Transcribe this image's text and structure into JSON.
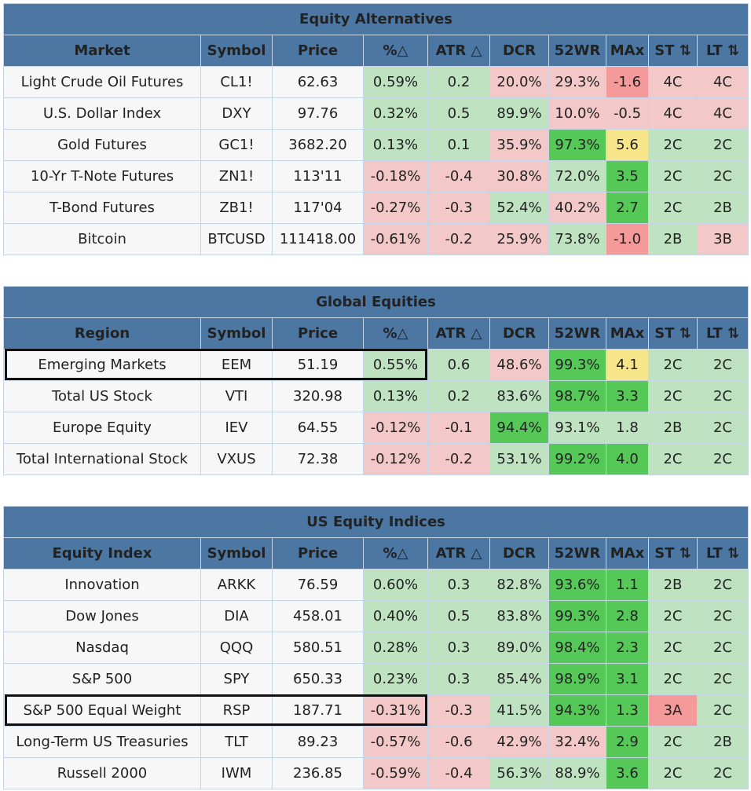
{
  "columns": {
    "symbol": "Symbol",
    "price": "Price",
    "pct": "%△",
    "atr": "ATR △",
    "dcr": "DCR",
    "wr52": "52WR",
    "max": "MAx",
    "st": "ST ⇅",
    "lt": "LT ⇅"
  },
  "cell_colors": {
    "g": "#bfe3c0",
    "r": "#f3c8c8",
    "G": "#55c857",
    "R": "#f49a9a",
    "Y": "#f7e58a",
    "w": "#f7f7f7",
    "header": "#4b77a2"
  },
  "sections": [
    {
      "title": "Equity Alternatives",
      "first_col": "Market",
      "rows": [
        {
          "name": "Light Crude Oil Futures",
          "symbol": "CL1!",
          "price": "62.63",
          "pct": "0.59%",
          "atr": "0.2",
          "dcr": "20.0%",
          "wr52": "29.3%",
          "max": "-1.6",
          "st": "4C",
          "lt": "4C",
          "colors": [
            "g",
            "g",
            "r",
            "r",
            "R",
            "r",
            "r"
          ]
        },
        {
          "name": "U.S. Dollar Index",
          "symbol": "DXY",
          "price": "97.76",
          "pct": "0.32%",
          "atr": "0.5",
          "dcr": "89.9%",
          "wr52": "10.0%",
          "max": "-0.5",
          "st": "4C",
          "lt": "4C",
          "colors": [
            "g",
            "g",
            "g",
            "r",
            "r",
            "r",
            "r"
          ]
        },
        {
          "name": "Gold Futures",
          "symbol": "GC1!",
          "price": "3682.20",
          "pct": "0.13%",
          "atr": "0.1",
          "dcr": "35.9%",
          "wr52": "97.3%",
          "max": "5.6",
          "st": "2C",
          "lt": "2C",
          "colors": [
            "g",
            "g",
            "r",
            "G",
            "Y",
            "g",
            "g"
          ]
        },
        {
          "name": "10-Yr T-Note Futures",
          "symbol": "ZN1!",
          "price": "113'11",
          "pct": "-0.18%",
          "atr": "-0.4",
          "dcr": "30.8%",
          "wr52": "72.0%",
          "max": "3.5",
          "st": "2C",
          "lt": "2C",
          "colors": [
            "r",
            "r",
            "r",
            "g",
            "G",
            "g",
            "g"
          ]
        },
        {
          "name": "T-Bond Futures",
          "symbol": "ZB1!",
          "price": "117'04",
          "pct": "-0.27%",
          "atr": "-0.3",
          "dcr": "52.4%",
          "wr52": "40.2%",
          "max": "2.7",
          "st": "2C",
          "lt": "2B",
          "colors": [
            "r",
            "r",
            "g",
            "r",
            "G",
            "g",
            "g"
          ]
        },
        {
          "name": "Bitcoin",
          "symbol": "BTCUSD",
          "price": "111418.00",
          "pct": "-0.61%",
          "atr": "-0.2",
          "dcr": "25.9%",
          "wr52": "73.8%",
          "max": "-1.0",
          "st": "2B",
          "lt": "3B",
          "colors": [
            "r",
            "r",
            "r",
            "g",
            "R",
            "g",
            "r"
          ]
        }
      ]
    },
    {
      "title": "Global Equities",
      "first_col": "Region",
      "rows": [
        {
          "name": "Emerging Markets",
          "symbol": "EEM",
          "price": "51.19",
          "pct": "0.55%",
          "atr": "0.6",
          "dcr": "48.6%",
          "wr52": "99.3%",
          "max": "4.1",
          "st": "2C",
          "lt": "2C",
          "colors": [
            "g",
            "g",
            "r",
            "G",
            "Y",
            "g",
            "g"
          ]
        },
        {
          "name": "Total US Stock",
          "symbol": "VTI",
          "price": "320.98",
          "pct": "0.13%",
          "atr": "0.2",
          "dcr": "83.6%",
          "wr52": "98.7%",
          "max": "3.3",
          "st": "2C",
          "lt": "2C",
          "colors": [
            "g",
            "g",
            "g",
            "G",
            "G",
            "g",
            "g"
          ]
        },
        {
          "name": "Europe Equity",
          "symbol": "IEV",
          "price": "64.55",
          "pct": "-0.12%",
          "atr": "-0.1",
          "dcr": "94.4%",
          "wr52": "93.1%",
          "max": "1.8",
          "st": "2B",
          "lt": "2C",
          "colors": [
            "r",
            "r",
            "G",
            "g",
            "g",
            "g",
            "g"
          ]
        },
        {
          "name": "Total International Stock",
          "symbol": "VXUS",
          "price": "72.38",
          "pct": "-0.12%",
          "atr": "-0.2",
          "dcr": "53.1%",
          "wr52": "99.2%",
          "max": "4.0",
          "st": "2C",
          "lt": "2C",
          "colors": [
            "r",
            "r",
            "g",
            "G",
            "G",
            "g",
            "g"
          ]
        }
      ]
    },
    {
      "title": "US Equity Indices",
      "first_col": "Equity Index",
      "rows": [
        {
          "name": "Innovation",
          "symbol": "ARKK",
          "price": "76.59",
          "pct": "0.60%",
          "atr": "0.3",
          "dcr": "82.8%",
          "wr52": "93.6%",
          "max": "1.1",
          "st": "2B",
          "lt": "2C",
          "colors": [
            "g",
            "g",
            "g",
            "G",
            "G",
            "g",
            "g"
          ]
        },
        {
          "name": "Dow Jones",
          "symbol": "DIA",
          "price": "458.01",
          "pct": "0.40%",
          "atr": "0.5",
          "dcr": "83.8%",
          "wr52": "99.3%",
          "max": "2.8",
          "st": "2C",
          "lt": "2C",
          "colors": [
            "g",
            "g",
            "g",
            "G",
            "G",
            "g",
            "g"
          ]
        },
        {
          "name": "Nasdaq",
          "symbol": "QQQ",
          "price": "580.51",
          "pct": "0.28%",
          "atr": "0.3",
          "dcr": "89.0%",
          "wr52": "98.4%",
          "max": "2.3",
          "st": "2C",
          "lt": "2C",
          "colors": [
            "g",
            "g",
            "g",
            "G",
            "G",
            "g",
            "g"
          ]
        },
        {
          "name": "S&P 500",
          "symbol": "SPY",
          "price": "650.33",
          "pct": "0.23%",
          "atr": "0.3",
          "dcr": "85.4%",
          "wr52": "98.9%",
          "max": "3.1",
          "st": "2C",
          "lt": "2C",
          "colors": [
            "g",
            "g",
            "g",
            "G",
            "G",
            "g",
            "g"
          ]
        },
        {
          "name": "S&P 500 Equal Weight",
          "symbol": "RSP",
          "price": "187.71",
          "pct": "-0.31%",
          "atr": "-0.3",
          "dcr": "41.5%",
          "wr52": "94.3%",
          "max": "1.3",
          "st": "3A",
          "lt": "2C",
          "colors": [
            "r",
            "r",
            "g",
            "G",
            "G",
            "R",
            "g"
          ]
        },
        {
          "name": "Long-Term US Treasuries",
          "symbol": "TLT",
          "price": "89.23",
          "pct": "-0.57%",
          "atr": "-0.6",
          "dcr": "42.9%",
          "wr52": "32.4%",
          "max": "2.9",
          "st": "2C",
          "lt": "2B",
          "colors": [
            "r",
            "r",
            "r",
            "r",
            "G",
            "g",
            "g"
          ]
        },
        {
          "name": "Russell 2000",
          "symbol": "IWM",
          "price": "236.85",
          "pct": "-0.59%",
          "atr": "-0.4",
          "dcr": "56.3%",
          "wr52": "88.9%",
          "max": "3.6",
          "st": "2C",
          "lt": "2C",
          "colors": [
            "r",
            "r",
            "g",
            "g",
            "G",
            "g",
            "g"
          ]
        }
      ]
    }
  ]
}
